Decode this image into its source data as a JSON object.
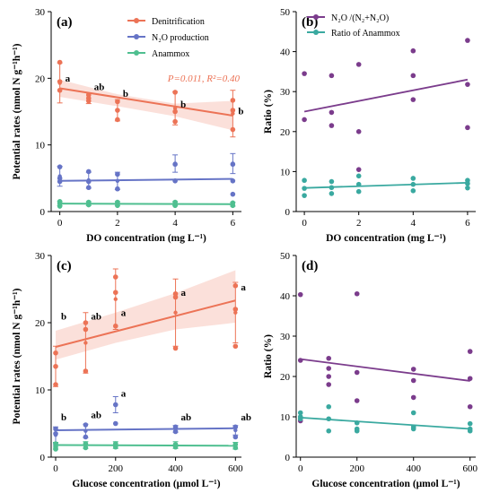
{
  "colors": {
    "denit": "#ec7356",
    "n2o": "#6674c6",
    "anammox": "#4fbf90",
    "ratio_n2o": "#7b3c8c",
    "ratio_anammox": "#3aa9a0"
  },
  "chart_data": [
    {
      "id": "a",
      "type": "scatter",
      "panel_label": "(a)",
      "xlabel": "DO concentration (mg L⁻¹)",
      "ylabel": "Potential rates (nmol N g⁻¹h⁻¹)",
      "xlim": [
        -0.3,
        6.3
      ],
      "ylim": [
        0,
        30
      ],
      "xticks": [
        0,
        2,
        4,
        6
      ],
      "yticks": [
        0,
        10,
        20,
        30
      ],
      "legend_position": "top-right",
      "annotation": "P=0.011, R²=0.40",
      "series": [
        {
          "name": "Denitrification",
          "color_key": "denit",
          "points": [
            [
              0,
              22.4
            ],
            [
              0,
              19.5
            ],
            [
              0,
              18.2
            ],
            [
              1,
              17.5
            ],
            [
              1,
              17.0
            ],
            [
              1,
              16.6
            ],
            [
              2,
              16.5
            ],
            [
              2,
              15.2
            ],
            [
              2,
              13.8
            ],
            [
              4,
              17.9
            ],
            [
              4,
              15.0
            ],
            [
              4,
              13.5
            ],
            [
              6,
              16.7
            ],
            [
              6,
              15.2
            ],
            [
              6,
              12.3
            ]
          ],
          "means": [
            [
              0,
              19.3,
              3.0
            ],
            [
              1,
              17.0,
              0.8
            ],
            [
              2,
              15.2,
              1.6
            ],
            [
              4,
              15.5,
              2.5
            ],
            [
              6,
              14.7,
              3.5
            ]
          ],
          "fit": [
            [
              0,
              18.5
            ],
            [
              6,
              14.4
            ]
          ],
          "band": [
            [
              0,
              17.2,
              19.8
            ],
            [
              2,
              15.8,
              17.6
            ],
            [
              4,
              14.3,
              16.2
            ],
            [
              6,
              12.2,
              16.6
            ]
          ]
        },
        {
          "name": "N₂O production",
          "color_key": "n2o",
          "points": [
            [
              0,
              6.7
            ],
            [
              0,
              5.0
            ],
            [
              0,
              4.5
            ],
            [
              1,
              6.0
            ],
            [
              1,
              4.5
            ],
            [
              1,
              3.6
            ],
            [
              2,
              5.6
            ],
            [
              2,
              3.4
            ],
            [
              4,
              7.1
            ],
            [
              4,
              4.6
            ],
            [
              6,
              7.1
            ],
            [
              6,
              4.6
            ],
            [
              6,
              2.6
            ]
          ],
          "means": [
            [
              0,
              5.3,
              1.5
            ],
            [
              1,
              4.7,
              1.2
            ],
            [
              2,
              4.6,
              1.3
            ],
            [
              4,
              7.2,
              1.3
            ],
            [
              6,
              7.2,
              1.5
            ]
          ],
          "fit": [
            [
              0,
              4.6
            ],
            [
              6,
              4.9
            ]
          ]
        },
        {
          "name": "Anammox",
          "color_key": "anammox",
          "points": [
            [
              0,
              1.5
            ],
            [
              0,
              1.2
            ],
            [
              0,
              0.8
            ],
            [
              1,
              1.4
            ],
            [
              1,
              1.0
            ],
            [
              2,
              1.4
            ],
            [
              2,
              0.9
            ],
            [
              4,
              1.4
            ],
            [
              4,
              0.9
            ],
            [
              6,
              1.3
            ],
            [
              6,
              0.9
            ]
          ],
          "means": [
            [
              0,
              1.2,
              0.3
            ],
            [
              1,
              1.2,
              0.3
            ],
            [
              2,
              1.2,
              0.3
            ],
            [
              4,
              1.2,
              0.3
            ],
            [
              6,
              1.1,
              0.3
            ]
          ],
          "fit": [
            [
              0,
              1.2
            ],
            [
              6,
              1.1
            ]
          ]
        }
      ],
      "letters": [
        {
          "x": 0,
          "y": 19.5,
          "text": "a"
        },
        {
          "x": 1,
          "y": 18.2,
          "text": "ab"
        },
        {
          "x": 2,
          "y": 17.2,
          "text": "b"
        },
        {
          "x": 4,
          "y": 15.6,
          "text": "b"
        },
        {
          "x": 6,
          "y": 14.6,
          "text": "b"
        }
      ]
    },
    {
      "id": "b",
      "type": "scatter",
      "panel_label": "(b)",
      "xlabel": "DO concentration (mg L⁻¹)",
      "ylabel": "Ratio (%)",
      "xlim": [
        -0.3,
        6.3
      ],
      "ylim": [
        0,
        50
      ],
      "xticks": [
        0,
        2,
        4,
        6
      ],
      "yticks": [
        0,
        10,
        20,
        30,
        40,
        50
      ],
      "legend_position": "top-left",
      "series": [
        {
          "name": "N₂O /(N₂+N₂O)",
          "color_key": "ratio_n2o",
          "points": [
            [
              0,
              34.5
            ],
            [
              0,
              23.0
            ],
            [
              1,
              34.0
            ],
            [
              1,
              24.8
            ],
            [
              1,
              21.5
            ],
            [
              2,
              36.8
            ],
            [
              2,
              20.0
            ],
            [
              2,
              10.5
            ],
            [
              4,
              40.2
            ],
            [
              4,
              34.0
            ],
            [
              4,
              28.0
            ],
            [
              6,
              42.8
            ],
            [
              6,
              31.8
            ],
            [
              6,
              21.0
            ]
          ],
          "fit": [
            [
              0,
              25.0
            ],
            [
              6,
              33.0
            ]
          ]
        },
        {
          "name": "Ratio of Anammox",
          "color_key": "ratio_anammox",
          "points": [
            [
              0,
              7.8
            ],
            [
              0,
              5.8
            ],
            [
              0,
              4.0
            ],
            [
              1,
              7.5
            ],
            [
              1,
              6.0
            ],
            [
              1,
              4.5
            ],
            [
              2,
              8.9
            ],
            [
              2,
              6.8
            ],
            [
              2,
              5.0
            ],
            [
              4,
              8.3
            ],
            [
              4,
              6.8
            ],
            [
              4,
              5.2
            ],
            [
              6,
              7.8
            ],
            [
              6,
              7.0
            ],
            [
              6,
              5.9
            ]
          ],
          "fit": [
            [
              0,
              5.9
            ],
            [
              6,
              7.2
            ]
          ]
        }
      ]
    },
    {
      "id": "c",
      "type": "scatter",
      "panel_label": "(c)",
      "xlabel": "Glucose concentration (μmol L⁻¹)",
      "ylabel": "Potential rates (nmol N g⁻¹h⁻¹)",
      "xlim": [
        -15,
        620
      ],
      "ylim": [
        0,
        30
      ],
      "xticks": [
        0,
        200,
        400,
        600
      ],
      "yticks": [
        0,
        10,
        20,
        30
      ],
      "series": [
        {
          "name": "Denitrification",
          "color_key": "denit",
          "points": [
            [
              0,
              15.5
            ],
            [
              0,
              13.5
            ],
            [
              0,
              10.8
            ],
            [
              100,
              20.0
            ],
            [
              100,
              19.0
            ],
            [
              100,
              12.8
            ],
            [
              200,
              26.8
            ],
            [
              200,
              24.5
            ],
            [
              200,
              19.5
            ],
            [
              400,
              24.3
            ],
            [
              400,
              23.8
            ],
            [
              400,
              16.2
            ],
            [
              600,
              25.5
            ],
            [
              600,
              22.0
            ],
            [
              600,
              16.5
            ]
          ],
          "means": [
            [
              0,
              13.5,
              3.0
            ],
            [
              100,
              17.0,
              4.5
            ],
            [
              200,
              23.5,
              4.5
            ],
            [
              400,
              21.5,
              5.0
            ],
            [
              600,
              21.5,
              4.5
            ]
          ],
          "fit": [
            [
              0,
              16.4
            ],
            [
              600,
              23.3
            ]
          ],
          "band": [
            [
              0,
              14.5,
              18.8
            ],
            [
              200,
              17.0,
              21.5
            ],
            [
              400,
              19.0,
              24.4
            ],
            [
              600,
              20.0,
              27.8
            ]
          ]
        },
        {
          "name": "N₂O production",
          "color_key": "n2o",
          "points": [
            [
              0,
              4.2
            ],
            [
              0,
              3.5
            ],
            [
              0,
              1.8
            ],
            [
              100,
              4.8
            ],
            [
              100,
              3.0
            ],
            [
              200,
              7.8
            ],
            [
              200,
              5.0
            ],
            [
              400,
              4.5
            ],
            [
              400,
              3.8
            ],
            [
              600,
              4.5
            ],
            [
              600,
              3.0
            ]
          ],
          "means": [
            [
              0,
              3.3,
              1.2
            ],
            [
              100,
              3.9,
              1.0
            ],
            [
              200,
              7.8,
              1.2
            ],
            [
              400,
              4.2,
              0.5
            ],
            [
              600,
              4.0,
              0.7
            ]
          ],
          "fit": [
            [
              0,
              4.0
            ],
            [
              600,
              4.3
            ]
          ]
        },
        {
          "name": "Anammox",
          "color_key": "anammox",
          "points": [
            [
              0,
              2.0
            ],
            [
              0,
              1.5
            ],
            [
              0,
              1.2
            ],
            [
              100,
              2.0
            ],
            [
              100,
              1.4
            ],
            [
              200,
              2.0
            ],
            [
              200,
              1.5
            ],
            [
              400,
              1.9
            ],
            [
              400,
              1.5
            ],
            [
              600,
              1.9
            ],
            [
              600,
              1.4
            ]
          ],
          "means": [
            [
              0,
              1.7,
              0.5
            ],
            [
              100,
              1.8,
              0.5
            ],
            [
              200,
              1.8,
              0.5
            ],
            [
              400,
              1.8,
              0.5
            ],
            [
              600,
              1.7,
              0.5
            ]
          ],
          "fit": [
            [
              0,
              1.8
            ],
            [
              600,
              1.7
            ]
          ]
        }
      ],
      "letters": [
        {
          "x": 0,
          "y": 20.5,
          "text": "b"
        },
        {
          "x": 100,
          "y": 20.5,
          "text": "ab"
        },
        {
          "x": 200,
          "y": 21.0,
          "text": "a"
        },
        {
          "x": 400,
          "y": 24.0,
          "text": "a"
        },
        {
          "x": 600,
          "y": 24.8,
          "text": "a"
        },
        {
          "x": 0,
          "y": 5.5,
          "text": "b"
        },
        {
          "x": 100,
          "y": 5.8,
          "text": "ab"
        },
        {
          "x": 200,
          "y": 9.0,
          "text": "a"
        },
        {
          "x": 400,
          "y": 5.5,
          "text": "ab"
        },
        {
          "x": 600,
          "y": 5.5,
          "text": "ab"
        }
      ]
    },
    {
      "id": "d",
      "type": "scatter",
      "panel_label": "(d)",
      "xlabel": "Glucose concentration (μmol L⁻¹)",
      "ylabel": "Ratio (%)",
      "xlim": [
        -15,
        620
      ],
      "ylim": [
        0,
        50
      ],
      "xticks": [
        0,
        200,
        400,
        600
      ],
      "yticks": [
        0,
        10,
        20,
        30,
        40,
        50
      ],
      "series": [
        {
          "name": "N₂O /(N₂+N₂O)",
          "color_key": "ratio_n2o",
          "points": [
            [
              0,
              40.3
            ],
            [
              0,
              24.0
            ],
            [
              0,
              9.0
            ],
            [
              100,
              24.5
            ],
            [
              100,
              22.0
            ],
            [
              100,
              20.0
            ],
            [
              100,
              18.0
            ],
            [
              200,
              40.5
            ],
            [
              200,
              21.0
            ],
            [
              200,
              14.0
            ],
            [
              400,
              21.8
            ],
            [
              400,
              19.0
            ],
            [
              400,
              14.8
            ],
            [
              600,
              26.2
            ],
            [
              600,
              19.5
            ],
            [
              600,
              12.5
            ]
          ],
          "fit": [
            [
              0,
              24.3
            ],
            [
              600,
              18.9
            ]
          ]
        },
        {
          "name": "Ratio of Anammox",
          "color_key": "ratio_anammox",
          "points": [
            [
              0,
              11.0
            ],
            [
              0,
              10.0
            ],
            [
              0,
              9.5
            ],
            [
              100,
              12.5
            ],
            [
              100,
              9.5
            ],
            [
              100,
              6.5
            ],
            [
              200,
              8.5
            ],
            [
              200,
              7.0
            ],
            [
              200,
              6.5
            ],
            [
              400,
              11.0
            ],
            [
              400,
              7.5
            ],
            [
              400,
              7.0
            ],
            [
              600,
              8.3
            ],
            [
              600,
              7.0
            ],
            [
              600,
              6.5
            ]
          ],
          "fit": [
            [
              0,
              9.8
            ],
            [
              600,
              7.0
            ]
          ]
        }
      ]
    }
  ]
}
